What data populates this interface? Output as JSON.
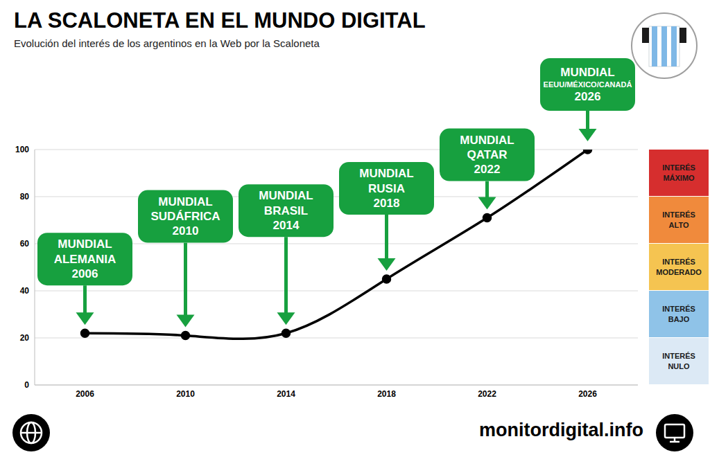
{
  "chart_data": {
    "type": "line",
    "title": "LA SCALONETA EN EL MUNDO DIGITAL",
    "subtitle": "Evolución del interés de los argentinos en la Web por la Scaloneta",
    "x": [
      2006,
      2010,
      2014,
      2018,
      2022,
      2026
    ],
    "values": [
      22,
      21,
      22,
      45,
      71,
      100
    ],
    "color": "#000000",
    "marker": "circle",
    "line_style": "solid",
    "xlim": [
      2004,
      2028
    ],
    "xticks": [
      2006,
      2010,
      2014,
      2018,
      2022,
      2026
    ],
    "ylim": [
      0,
      100
    ],
    "yticks": [
      0,
      20,
      40,
      60,
      80,
      100
    ],
    "grid": true,
    "annotations": [
      {
        "x": 2006,
        "text": [
          "MUNDIAL",
          "ALEMANIA",
          "2006"
        ]
      },
      {
        "x": 2010,
        "text": [
          "MUNDIAL",
          "SUDÁFRICA",
          "2010"
        ]
      },
      {
        "x": 2014,
        "text": [
          "MUNDIAL",
          "BRASIL",
          "2014"
        ]
      },
      {
        "x": 2018,
        "text": [
          "MUNDIAL",
          "RUSIA",
          "2018"
        ]
      },
      {
        "x": 2022,
        "text": [
          "MUNDIAL",
          "QATAR",
          "2022"
        ]
      },
      {
        "x": 2026,
        "text": [
          "MUNDIAL",
          "EEUU/MÉXICO/CANADÁ",
          "2026"
        ]
      }
    ],
    "bands": [
      {
        "label": "INTERÉS MÁXIMO",
        "color": "#d62e2e",
        "range": [
          80,
          100
        ]
      },
      {
        "label": "INTERÉS ALTO",
        "color": "#f08a3c",
        "range": [
          60,
          80
        ]
      },
      {
        "label": "INTERÉS MODERADO",
        "color": "#f5c451",
        "range": [
          40,
          60
        ]
      },
      {
        "label": "INTERÉS BAJO",
        "color": "#8fc3e8",
        "range": [
          20,
          40
        ]
      },
      {
        "label": "INTERÉS NULO",
        "color": "#dce9f5",
        "range": [
          0,
          20
        ]
      }
    ],
    "footer": "monitordigital.info"
  }
}
